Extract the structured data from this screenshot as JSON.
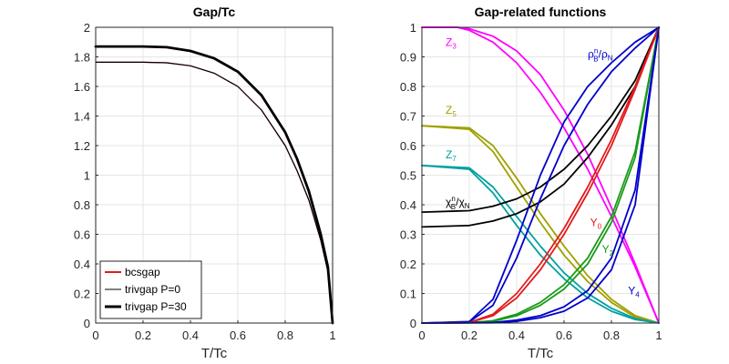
{
  "chart_data": [
    {
      "type": "line",
      "title": "Gap/Tc",
      "xlabel": "T/Tc",
      "ylabel": "",
      "xlim": [
        0,
        1
      ],
      "ylim": [
        0,
        2
      ],
      "xticks": [
        "0",
        "0.2",
        "0.4",
        "0.6",
        "0.8",
        "1"
      ],
      "yticks": [
        "0",
        "0.2",
        "0.4",
        "0.6",
        "0.8",
        "1",
        "1.2",
        "1.4",
        "1.6",
        "1.8",
        "2"
      ],
      "grid": true,
      "legend_position": "bottom-left",
      "series": [
        {
          "name": "bcsgap",
          "color": "#e31a1c",
          "width": "thin",
          "x": [
            0,
            0.1,
            0.2,
            0.3,
            0.4,
            0.5,
            0.6,
            0.7,
            0.8,
            0.85,
            0.9,
            0.95,
            0.98,
            1
          ],
          "y": [
            1.764,
            1.764,
            1.764,
            1.76,
            1.74,
            1.69,
            1.6,
            1.44,
            1.2,
            1.03,
            0.83,
            0.56,
            0.35,
            0
          ]
        },
        {
          "name": "trivgap P=0",
          "color": "#000000",
          "width": "thin",
          "x": [
            0,
            0.1,
            0.2,
            0.3,
            0.4,
            0.5,
            0.6,
            0.7,
            0.8,
            0.85,
            0.9,
            0.95,
            0.98,
            1
          ],
          "y": [
            1.764,
            1.764,
            1.764,
            1.76,
            1.74,
            1.69,
            1.6,
            1.44,
            1.2,
            1.03,
            0.83,
            0.56,
            0.35,
            0
          ]
        },
        {
          "name": "trivgap P=30",
          "color": "#000000",
          "width": "thick",
          "x": [
            0,
            0.1,
            0.2,
            0.3,
            0.4,
            0.5,
            0.6,
            0.7,
            0.8,
            0.85,
            0.9,
            0.95,
            0.98,
            1
          ],
          "y": [
            1.87,
            1.87,
            1.87,
            1.865,
            1.84,
            1.79,
            1.7,
            1.54,
            1.29,
            1.11,
            0.89,
            0.6,
            0.38,
            0
          ]
        }
      ]
    },
    {
      "type": "line",
      "title": "Gap-related functions",
      "xlabel": "T/Tc",
      "ylabel": "",
      "xlim": [
        0,
        1
      ],
      "ylim": [
        0,
        1
      ],
      "xticks": [
        "0",
        "0.2",
        "0.4",
        "0.6",
        "0.8",
        "1"
      ],
      "yticks": [
        "0",
        "0.1",
        "0.2",
        "0.3",
        "0.4",
        "0.5",
        "0.6",
        "0.7",
        "0.8",
        "0.9",
        "1"
      ],
      "grid": true,
      "series": [
        {
          "color": "#ff00ff",
          "x": [
            0,
            0.15,
            0.2,
            0.3,
            0.4,
            0.5,
            0.6,
            0.7,
            0.8,
            0.9,
            1
          ],
          "y": [
            1,
            1,
            0.995,
            0.97,
            0.92,
            0.84,
            0.72,
            0.57,
            0.39,
            0.2,
            0
          ]
        },
        {
          "color": "#ff00ff",
          "x": [
            0,
            0.15,
            0.2,
            0.3,
            0.4,
            0.5,
            0.6,
            0.7,
            0.8,
            0.9,
            1
          ],
          "y": [
            1,
            1,
            0.99,
            0.95,
            0.88,
            0.78,
            0.66,
            0.52,
            0.36,
            0.19,
            0
          ]
        },
        {
          "color": "#a0a000",
          "x": [
            0,
            0.2,
            0.3,
            0.4,
            0.5,
            0.6,
            0.7,
            0.8,
            0.9,
            1
          ],
          "y": [
            0.667,
            0.66,
            0.6,
            0.49,
            0.37,
            0.26,
            0.16,
            0.08,
            0.025,
            0
          ]
        },
        {
          "color": "#a0a000",
          "x": [
            0,
            0.2,
            0.3,
            0.4,
            0.5,
            0.6,
            0.7,
            0.8,
            0.9,
            1
          ],
          "y": [
            0.667,
            0.655,
            0.58,
            0.46,
            0.34,
            0.23,
            0.14,
            0.07,
            0.02,
            0
          ]
        },
        {
          "color": "#00a0a0",
          "x": [
            0,
            0.2,
            0.3,
            0.4,
            0.5,
            0.6,
            0.7,
            0.8,
            0.9,
            1
          ],
          "y": [
            0.533,
            0.525,
            0.46,
            0.36,
            0.26,
            0.17,
            0.1,
            0.05,
            0.015,
            0
          ]
        },
        {
          "color": "#00a0a0",
          "x": [
            0,
            0.2,
            0.3,
            0.4,
            0.5,
            0.6,
            0.7,
            0.8,
            0.9,
            1
          ],
          "y": [
            0.533,
            0.52,
            0.44,
            0.33,
            0.23,
            0.15,
            0.085,
            0.04,
            0.012,
            0
          ]
        },
        {
          "color": "#000000",
          "x": [
            0,
            0.2,
            0.3,
            0.4,
            0.5,
            0.6,
            0.7,
            0.8,
            0.9,
            1
          ],
          "y": [
            0.375,
            0.38,
            0.395,
            0.42,
            0.46,
            0.52,
            0.6,
            0.7,
            0.82,
            1
          ]
        },
        {
          "color": "#000000",
          "x": [
            0,
            0.2,
            0.3,
            0.4,
            0.5,
            0.6,
            0.7,
            0.8,
            0.9,
            1
          ],
          "y": [
            0.325,
            0.33,
            0.345,
            0.37,
            0.41,
            0.47,
            0.56,
            0.67,
            0.8,
            1
          ]
        },
        {
          "color": "#0000cc",
          "x": [
            0,
            0.2,
            0.3,
            0.4,
            0.5,
            0.6,
            0.7,
            0.8,
            0.9,
            1
          ],
          "y": [
            0,
            0.005,
            0.08,
            0.28,
            0.5,
            0.68,
            0.8,
            0.88,
            0.95,
            1
          ]
        },
        {
          "color": "#0000cc",
          "x": [
            0,
            0.2,
            0.3,
            0.4,
            0.5,
            0.6,
            0.7,
            0.8,
            0.9,
            1
          ],
          "y": [
            0,
            0.004,
            0.06,
            0.22,
            0.42,
            0.6,
            0.74,
            0.85,
            0.93,
            1
          ]
        },
        {
          "color": "#e31a1c",
          "x": [
            0,
            0.2,
            0.3,
            0.4,
            0.5,
            0.6,
            0.7,
            0.8,
            0.9,
            1
          ],
          "y": [
            0,
            0.002,
            0.03,
            0.1,
            0.2,
            0.32,
            0.46,
            0.62,
            0.8,
            1
          ]
        },
        {
          "color": "#e31a1c",
          "x": [
            0,
            0.2,
            0.3,
            0.4,
            0.5,
            0.6,
            0.7,
            0.8,
            0.9,
            1
          ],
          "y": [
            0,
            0.002,
            0.025,
            0.085,
            0.18,
            0.3,
            0.44,
            0.6,
            0.79,
            1
          ]
        },
        {
          "color": "#1a9a1a",
          "x": [
            0,
            0.2,
            0.3,
            0.4,
            0.5,
            0.6,
            0.7,
            0.8,
            0.9,
            1
          ],
          "y": [
            0,
            0.001,
            0.008,
            0.03,
            0.07,
            0.13,
            0.22,
            0.36,
            0.58,
            1
          ]
        },
        {
          "color": "#1a9a1a",
          "x": [
            0,
            0.2,
            0.3,
            0.4,
            0.5,
            0.6,
            0.7,
            0.8,
            0.9,
            1
          ],
          "y": [
            0,
            0.001,
            0.006,
            0.025,
            0.06,
            0.115,
            0.2,
            0.34,
            0.56,
            1
          ]
        },
        {
          "color": "#0000cc",
          "x": [
            0,
            0.3,
            0.4,
            0.5,
            0.6,
            0.7,
            0.8,
            0.9,
            1
          ],
          "y": [
            0,
            0.002,
            0.01,
            0.025,
            0.055,
            0.11,
            0.22,
            0.45,
            1
          ]
        },
        {
          "color": "#0000cc",
          "x": [
            0,
            0.3,
            0.4,
            0.5,
            0.6,
            0.7,
            0.8,
            0.9,
            1
          ],
          "y": [
            0,
            0.001,
            0.006,
            0.018,
            0.04,
            0.085,
            0.18,
            0.4,
            1
          ]
        }
      ],
      "annotations": [
        {
          "text": "Z",
          "sub": "3",
          "sup": "",
          "x": 0.1,
          "y": 0.95,
          "color": "#ff00ff"
        },
        {
          "text": "Z",
          "sub": "5",
          "sup": "",
          "x": 0.1,
          "y": 0.72,
          "color": "#a0a000"
        },
        {
          "text": "Z",
          "sub": "7",
          "sup": "",
          "x": 0.1,
          "y": 0.57,
          "color": "#00a0a0"
        },
        {
          "text": "χ",
          "sub": "B",
          "sup": "n",
          "x": 0.1,
          "y": 0.41,
          "color": "#000000",
          "tail": "/χ",
          "tailsub": "N"
        },
        {
          "text": "ρ",
          "sub": "B",
          "sup": "n",
          "x": 0.7,
          "y": 0.91,
          "color": "#0000cc",
          "tail": "/ρ",
          "tailsub": "N"
        },
        {
          "text": "Y",
          "sub": "0",
          "sup": "",
          "x": 0.71,
          "y": 0.34,
          "color": "#e31a1c"
        },
        {
          "text": "Y",
          "sub": "2",
          "sup": "",
          "x": 0.76,
          "y": 0.25,
          "color": "#1a9a1a"
        },
        {
          "text": "Y",
          "sub": "4",
          "sup": "",
          "x": 0.87,
          "y": 0.11,
          "color": "#0000cc"
        }
      ]
    }
  ]
}
